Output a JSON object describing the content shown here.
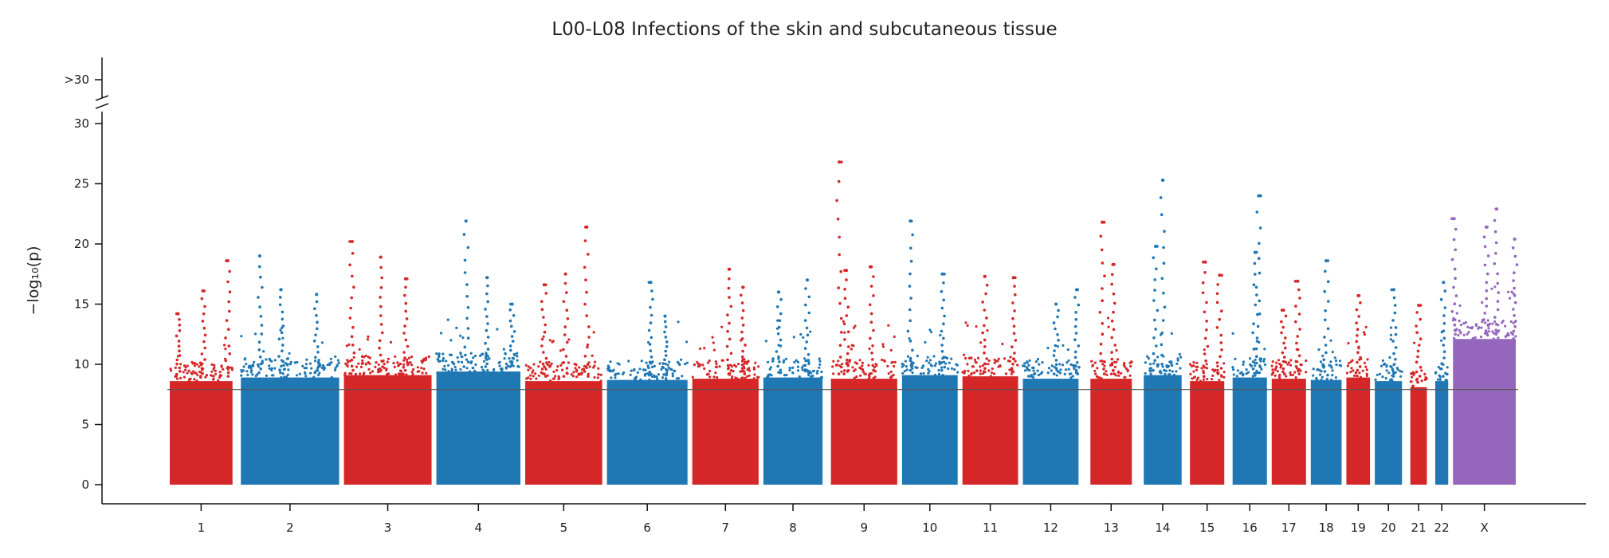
{
  "chart_data": {
    "type": "scatter",
    "subtype": "manhattan",
    "title": "L00-L08 Infections of the skin and subcutaneous tissue",
    "xlabel": "",
    "ylabel": "−log₁₀(p)",
    "ylim": [
      -1.7,
      30.5
    ],
    "y_break": {
      "above": 31,
      "label": ">30"
    },
    "yticks": [
      0,
      5,
      10,
      15,
      20,
      25,
      30
    ],
    "significance_line": 7.9,
    "colors": {
      "odd": "#d62728",
      "even": "#1f77b4",
      "X": "#9467bd",
      "sigline": "#555555"
    },
    "chromosomes": [
      {
        "label": "1",
        "color": "odd",
        "range": [
          0.0,
          0.95
        ],
        "bulk_top": 9.0,
        "peaks": [
          {
            "x": 0.5,
            "y": 16.1
          },
          {
            "x": 0.85,
            "y": 18.6
          },
          {
            "x": 0.15,
            "y": 14.2
          }
        ]
      },
      {
        "label": "2",
        "color": "even",
        "range": [
          1.0,
          2.45
        ],
        "bulk_top": 9.3,
        "peaks": [
          {
            "x": 1.3,
            "y": 19.0
          },
          {
            "x": 2.1,
            "y": 15.8
          },
          {
            "x": 1.6,
            "y": 16.2
          }
        ]
      },
      {
        "label": "3",
        "color": "odd",
        "range": [
          2.45,
          3.75
        ],
        "bulk_top": 9.5,
        "peaks": [
          {
            "x": 2.6,
            "y": 20.2
          },
          {
            "x": 3.0,
            "y": 18.9
          },
          {
            "x": 3.35,
            "y": 17.1
          }
        ]
      },
      {
        "label": "4",
        "color": "even",
        "range": [
          3.75,
          5.0
        ],
        "bulk_top": 9.8,
        "peaks": [
          {
            "x": 4.2,
            "y": 21.9
          },
          {
            "x": 4.5,
            "y": 17.2
          },
          {
            "x": 4.85,
            "y": 15.0
          }
        ]
      },
      {
        "label": "5",
        "color": "odd",
        "range": [
          5.0,
          6.15
        ],
        "bulk_top": 9.0,
        "peaks": [
          {
            "x": 5.9,
            "y": 21.4
          },
          {
            "x": 5.6,
            "y": 17.5
          },
          {
            "x": 5.3,
            "y": 16.6
          }
        ]
      },
      {
        "label": "6",
        "color": "even",
        "range": [
          6.15,
          7.35
        ],
        "bulk_top": 9.1,
        "peaks": [
          {
            "x": 6.8,
            "y": 16.8
          },
          {
            "x": 7.0,
            "y": 14.0
          }
        ]
      },
      {
        "label": "7",
        "color": "odd",
        "range": [
          7.35,
          8.35
        ],
        "bulk_top": 9.2,
        "peaks": [
          {
            "x": 7.9,
            "y": 17.9
          },
          {
            "x": 8.1,
            "y": 16.4
          }
        ]
      },
      {
        "label": "8",
        "color": "even",
        "range": [
          8.35,
          9.25
        ],
        "bulk_top": 9.3,
        "peaks": [
          {
            "x": 8.6,
            "y": 16.0
          },
          {
            "x": 9.0,
            "y": 17.0
          }
        ]
      },
      {
        "label": "9",
        "color": "odd",
        "range": [
          9.3,
          10.3
        ],
        "bulk_top": 9.2,
        "peaks": [
          {
            "x": 9.45,
            "y": 26.8
          },
          {
            "x": 9.55,
            "y": 17.8
          },
          {
            "x": 9.9,
            "y": 18.1
          }
        ]
      },
      {
        "label": "10",
        "color": "even",
        "range": [
          10.3,
          11.15
        ],
        "bulk_top": 9.5,
        "peaks": [
          {
            "x": 10.45,
            "y": 21.9
          },
          {
            "x": 10.9,
            "y": 17.5
          }
        ]
      },
      {
        "label": "11",
        "color": "odd",
        "range": [
          11.15,
          12.0
        ],
        "bulk_top": 9.4,
        "peaks": [
          {
            "x": 11.5,
            "y": 17.3
          },
          {
            "x": 11.9,
            "y": 17.2
          }
        ]
      },
      {
        "label": "12",
        "color": "even",
        "range": [
          12.0,
          12.85
        ],
        "bulk_top": 9.2,
        "peaks": [
          {
            "x": 12.5,
            "y": 15.0
          },
          {
            "x": 12.8,
            "y": 16.2
          }
        ]
      },
      {
        "label": "13",
        "color": "odd",
        "range": [
          12.95,
          13.6
        ],
        "bulk_top": 9.2,
        "peaks": [
          {
            "x": 13.15,
            "y": 21.8
          },
          {
            "x": 13.3,
            "y": 18.3
          }
        ]
      },
      {
        "label": "14",
        "color": "even",
        "range": [
          13.7,
          14.3
        ],
        "bulk_top": 9.5,
        "peaks": [
          {
            "x": 14.0,
            "y": 25.3
          },
          {
            "x": 13.9,
            "y": 19.8
          }
        ]
      },
      {
        "label": "15",
        "color": "odd",
        "range": [
          14.35,
          14.9
        ],
        "bulk_top": 9.0,
        "peaks": [
          {
            "x": 14.6,
            "y": 18.5
          },
          {
            "x": 14.8,
            "y": 17.4
          }
        ]
      },
      {
        "label": "16",
        "color": "even",
        "range": [
          14.95,
          15.5
        ],
        "bulk_top": 9.3,
        "peaks": [
          {
            "x": 15.35,
            "y": 24.0
          },
          {
            "x": 15.3,
            "y": 19.3
          }
        ]
      },
      {
        "label": "17",
        "color": "odd",
        "range": [
          15.5,
          16.05
        ],
        "bulk_top": 9.2,
        "peaks": [
          {
            "x": 15.9,
            "y": 16.9
          },
          {
            "x": 15.7,
            "y": 14.5
          }
        ]
      },
      {
        "label": "18",
        "color": "even",
        "range": [
          16.05,
          16.55
        ],
        "bulk_top": 9.1,
        "peaks": [
          {
            "x": 16.3,
            "y": 18.6
          }
        ]
      },
      {
        "label": "19",
        "color": "odd",
        "range": [
          16.55,
          16.95
        ],
        "bulk_top": 9.3,
        "peaks": [
          {
            "x": 16.75,
            "y": 15.7
          }
        ]
      },
      {
        "label": "20",
        "color": "even",
        "range": [
          16.95,
          17.4
        ],
        "bulk_top": 9.0,
        "peaks": [
          {
            "x": 17.25,
            "y": 16.2
          }
        ]
      },
      {
        "label": "21",
        "color": "odd",
        "range": [
          17.45,
          17.75
        ],
        "bulk_top": 8.5,
        "peaks": [
          {
            "x": 17.6,
            "y": 14.9
          }
        ]
      },
      {
        "label": "22",
        "color": "even",
        "range": [
          17.8,
          18.05
        ],
        "bulk_top": 9.0,
        "peaks": [
          {
            "x": 17.95,
            "y": 16.8
          }
        ]
      },
      {
        "label": "X",
        "color": "X",
        "range": [
          18.05,
          19.0
        ],
        "bulk_top": 12.5,
        "peaks": [
          {
            "x": 18.1,
            "y": 22.1
          },
          {
            "x": 18.7,
            "y": 22.9
          },
          {
            "x": 18.55,
            "y": 21.4
          },
          {
            "x": 18.95,
            "y": 20.4
          }
        ]
      }
    ]
  }
}
